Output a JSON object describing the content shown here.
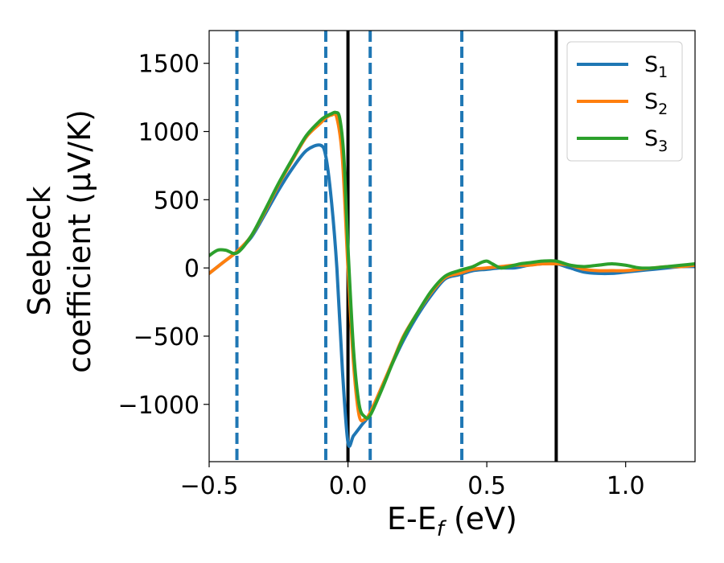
{
  "chart_data": {
    "type": "line",
    "title": "",
    "xlabel": "E-E",
    "xlabel_sub": "f",
    "xlabel_unit": " (eV)",
    "ylabel_line1": "Seebeck",
    "ylabel_line2": "coefficient  (μV/K)",
    "xlim": [
      -0.5,
      1.25
    ],
    "ylim": [
      -1420,
      1740
    ],
    "xticks": [
      -0.5,
      0.0,
      0.5,
      1.0
    ],
    "xtick_labels": [
      "−0.5",
      "0.0",
      "0.5",
      "1.0"
    ],
    "yticks": [
      -1000,
      -500,
      0,
      500,
      1000,
      1500
    ],
    "ytick_labels": [
      "−1000",
      "−500",
      "0",
      "500",
      "1000",
      "1500"
    ],
    "legend_position": "top-right",
    "vlines_solid": [
      0.0,
      0.75
    ],
    "vlines_dashed": [
      -0.4,
      -0.08,
      0.08,
      0.41
    ],
    "colors": {
      "S1": "#1f77b4",
      "S2": "#ff7f0e",
      "S3": "#2ca02c",
      "solid_vline": "#000000",
      "dashed_vline": "#1f77b4"
    },
    "series": [
      {
        "name": "S",
        "sub": "1",
        "color": "#1f77b4",
        "x": [
          -0.5,
          -0.45,
          -0.4,
          -0.35,
          -0.3,
          -0.25,
          -0.2,
          -0.15,
          -0.1,
          -0.08,
          -0.06,
          -0.04,
          -0.02,
          0.0,
          0.02,
          0.05,
          0.08,
          0.12,
          0.16,
          0.2,
          0.25,
          0.3,
          0.35,
          0.4,
          0.45,
          0.5,
          0.55,
          0.6,
          0.65,
          0.7,
          0.75,
          0.8,
          0.85,
          0.9,
          0.95,
          1.0,
          1.05,
          1.1,
          1.15,
          1.2,
          1.25
        ],
        "y": [
          -40,
          40,
          120,
          220,
          390,
          570,
          730,
          860,
          900,
          820,
          500,
          0,
          -750,
          -1280,
          -1230,
          -1150,
          -1070,
          -880,
          -700,
          -530,
          -350,
          -200,
          -80,
          -50,
          -20,
          -10,
          0,
          0,
          20,
          30,
          30,
          0,
          -30,
          -40,
          -40,
          -30,
          -20,
          -10,
          0,
          10,
          10
        ]
      },
      {
        "name": "S",
        "sub": "2",
        "color": "#ff7f0e",
        "x": [
          -0.5,
          -0.45,
          -0.4,
          -0.35,
          -0.3,
          -0.25,
          -0.2,
          -0.15,
          -0.1,
          -0.08,
          -0.06,
          -0.04,
          -0.02,
          0.0,
          0.02,
          0.04,
          0.06,
          0.08,
          0.12,
          0.16,
          0.2,
          0.25,
          0.3,
          0.35,
          0.4,
          0.45,
          0.5,
          0.55,
          0.6,
          0.65,
          0.7,
          0.75,
          0.8,
          0.85,
          0.9,
          0.95,
          1.0,
          1.05,
          1.1,
          1.15,
          1.2,
          1.25
        ],
        "y": [
          -40,
          40,
          120,
          230,
          410,
          610,
          790,
          960,
          1060,
          1100,
          1120,
          1100,
          800,
          0,
          -700,
          -1080,
          -1110,
          -1060,
          -880,
          -690,
          -500,
          -330,
          -180,
          -70,
          -40,
          -10,
          0,
          10,
          20,
          20,
          30,
          30,
          20,
          -10,
          -20,
          -20,
          -20,
          -10,
          0,
          10,
          10,
          20
        ]
      },
      {
        "name": "S",
        "sub": "3",
        "color": "#2ca02c",
        "x": [
          -0.5,
          -0.47,
          -0.44,
          -0.4,
          -0.35,
          -0.3,
          -0.25,
          -0.2,
          -0.15,
          -0.1,
          -0.08,
          -0.06,
          -0.045,
          -0.03,
          -0.015,
          0.0,
          0.02,
          0.04,
          0.06,
          0.08,
          0.12,
          0.16,
          0.2,
          0.25,
          0.3,
          0.35,
          0.4,
          0.45,
          0.48,
          0.5,
          0.52,
          0.55,
          0.58,
          0.62,
          0.66,
          0.7,
          0.75,
          0.8,
          0.85,
          0.9,
          0.95,
          1.0,
          1.05,
          1.1,
          1.15,
          1.2,
          1.25
        ],
        "y": [
          90,
          130,
          130,
          110,
          230,
          420,
          620,
          800,
          970,
          1080,
          1110,
          1130,
          1140,
          1100,
          820,
          150,
          -600,
          -1000,
          -1090,
          -1080,
          -900,
          -700,
          -510,
          -330,
          -170,
          -60,
          -20,
          10,
          40,
          50,
          30,
          0,
          10,
          30,
          40,
          50,
          50,
          20,
          10,
          20,
          30,
          20,
          0,
          0,
          10,
          20,
          30
        ]
      }
    ]
  }
}
